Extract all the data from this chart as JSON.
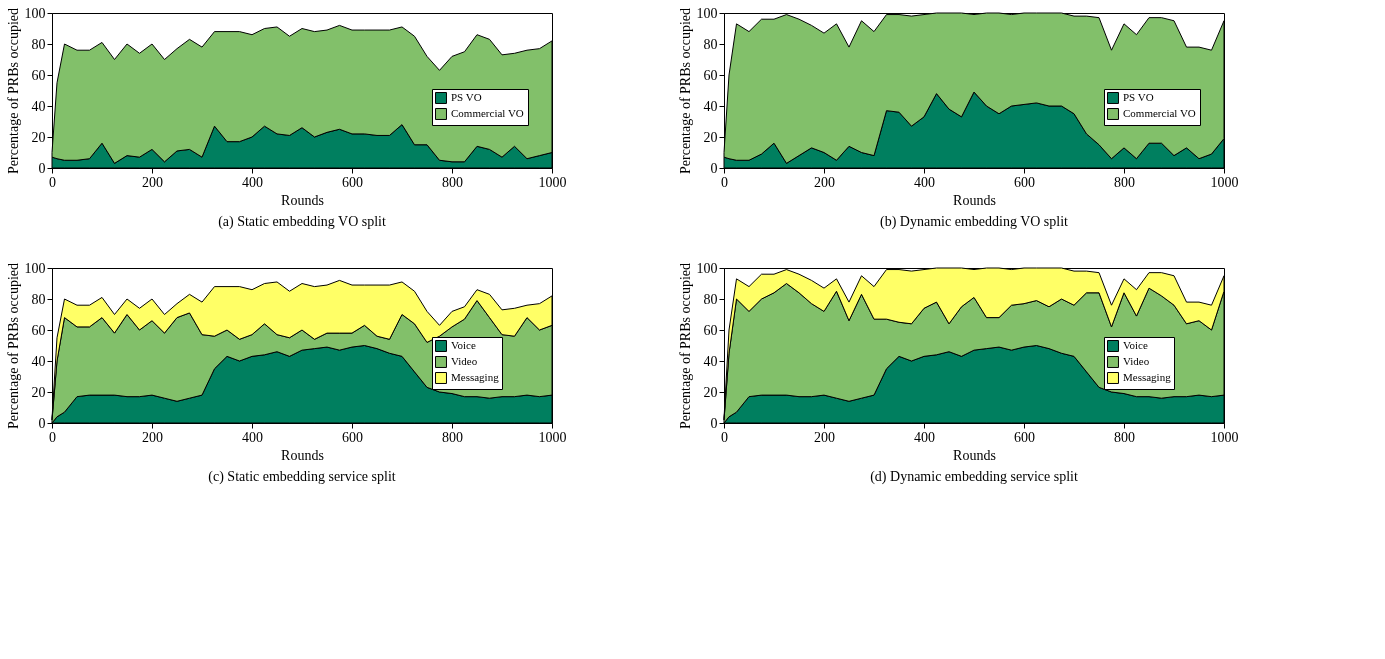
{
  "chart_data": [
    {
      "type": "area",
      "stacked": true,
      "title": "(a) Static embedding VO split",
      "xlabel": "Rounds",
      "ylabel": "Percentage of PRBs occupied",
      "legend": "right",
      "grid": false,
      "x": [
        0,
        10,
        25,
        50,
        75,
        100,
        125,
        150,
        175,
        200,
        225,
        250,
        275,
        300,
        325,
        350,
        375,
        400,
        425,
        450,
        475,
        500,
        525,
        550,
        575,
        600,
        625,
        650,
        675,
        700,
        725,
        750,
        775,
        800,
        825,
        850,
        875,
        900,
        925,
        950,
        975,
        1000
      ],
      "series": [
        {
          "name": "PS VO",
          "color": "#007f5f",
          "values": [
            7,
            6,
            5,
            5,
            6,
            16,
            3,
            8,
            7,
            12,
            4,
            11,
            12,
            7,
            27,
            17,
            17,
            20,
            27,
            22,
            21,
            26,
            20,
            23,
            25,
            22,
            22,
            21,
            21,
            28,
            15,
            15,
            5,
            4,
            4,
            14,
            12,
            7,
            14,
            6,
            8,
            10
          ]
        },
        {
          "name": "Commercial VO",
          "color": "#82c06a",
          "values": [
            3,
            49,
            75,
            71,
            70,
            65,
            67,
            72,
            67,
            68,
            66,
            66,
            71,
            71,
            61,
            71,
            71,
            66,
            63,
            69,
            64,
            64,
            68,
            66,
            67,
            67,
            67,
            68,
            68,
            63,
            70,
            57,
            58,
            68,
            71,
            72,
            71,
            66,
            60,
            70,
            69,
            72
          ]
        }
      ],
      "xlim": [
        0,
        1000
      ],
      "ylim": [
        0,
        100
      ],
      "xticks": [
        0,
        200,
        400,
        600,
        800,
        1000
      ],
      "yticks": [
        0,
        20,
        40,
        60,
        80,
        100
      ]
    },
    {
      "type": "area",
      "stacked": true,
      "title": "(b) Dynamic embedding VO split",
      "xlabel": "Rounds",
      "ylabel": "Percentage of PRBs occupied",
      "legend": "right",
      "grid": false,
      "x": [
        0,
        10,
        25,
        50,
        75,
        100,
        125,
        150,
        175,
        200,
        225,
        250,
        275,
        300,
        325,
        350,
        375,
        400,
        425,
        450,
        475,
        500,
        525,
        550,
        575,
        600,
        625,
        650,
        675,
        700,
        725,
        750,
        775,
        800,
        825,
        850,
        875,
        900,
        925,
        950,
        975,
        1000
      ],
      "series": [
        {
          "name": "PS VO",
          "color": "#007f5f",
          "values": [
            7,
            6,
            5,
            5,
            9,
            16,
            3,
            8,
            13,
            10,
            5,
            14,
            10,
            8,
            37,
            36,
            27,
            33,
            48,
            38,
            33,
            49,
            40,
            35,
            40,
            41,
            42,
            40,
            40,
            35,
            22,
            15,
            6,
            13,
            6,
            16,
            16,
            8,
            13,
            6,
            9,
            19
          ]
        },
        {
          "name": "Commercial VO",
          "color": "#82c06a",
          "values": [
            3,
            54,
            88,
            83,
            87,
            80,
            96,
            88,
            79,
            77,
            88,
            64,
            85,
            80,
            62,
            63,
            71,
            66,
            52,
            62,
            67,
            50,
            60,
            65,
            59,
            59,
            58,
            60,
            60,
            63,
            76,
            82,
            70,
            80,
            80,
            81,
            81,
            87,
            65,
            72,
            67,
            76
          ]
        }
      ],
      "xlim": [
        0,
        1000
      ],
      "ylim": [
        0,
        100
      ],
      "xticks": [
        0,
        200,
        400,
        600,
        800,
        1000
      ],
      "yticks": [
        0,
        20,
        40,
        60,
        80,
        100
      ]
    },
    {
      "type": "area",
      "stacked": true,
      "title": "(c) Static embedding service split",
      "xlabel": "Rounds",
      "ylabel": "Percentage of PRBs occupied",
      "legend": "right",
      "grid": false,
      "x": [
        0,
        10,
        25,
        50,
        75,
        100,
        125,
        150,
        175,
        200,
        225,
        250,
        275,
        300,
        325,
        350,
        375,
        400,
        425,
        450,
        475,
        500,
        525,
        550,
        575,
        600,
        625,
        650,
        675,
        700,
        725,
        750,
        775,
        800,
        825,
        850,
        875,
        900,
        925,
        950,
        975,
        1000
      ],
      "series": [
        {
          "name": "Voice",
          "color": "#007f5f",
          "values": [
            0,
            4,
            7,
            17,
            18,
            18,
            18,
            17,
            17,
            18,
            16,
            14,
            16,
            18,
            35,
            43,
            40,
            43,
            44,
            46,
            43,
            47,
            48,
            49,
            47,
            49,
            50,
            48,
            45,
            43,
            33,
            23,
            20,
            19,
            17,
            17,
            16,
            17,
            17,
            18,
            17,
            18
          ]
        },
        {
          "name": "Video",
          "color": "#82c06a",
          "values": [
            2,
            36,
            61,
            45,
            44,
            50,
            40,
            53,
            43,
            48,
            42,
            54,
            55,
            39,
            21,
            17,
            14,
            14,
            20,
            11,
            12,
            13,
            6,
            9,
            11,
            9,
            13,
            8,
            9,
            27,
            31,
            29,
            36,
            43,
            50,
            62,
            52,
            40,
            39,
            50,
            43,
            45
          ]
        },
        {
          "name": "Messaging",
          "color": "#ffff66",
          "values": [
            1,
            15,
            12,
            14,
            14,
            13,
            12,
            10,
            14,
            14,
            12,
            9,
            12,
            21,
            32,
            28,
            34,
            29,
            26,
            34,
            30,
            30,
            34,
            31,
            34,
            31,
            26,
            33,
            35,
            21,
            21,
            20,
            7,
            10,
            8,
            7,
            15,
            16,
            18,
            8,
            17,
            19
          ]
        }
      ],
      "xlim": [
        0,
        1000
      ],
      "ylim": [
        0,
        100
      ],
      "xticks": [
        0,
        200,
        400,
        600,
        800,
        1000
      ],
      "yticks": [
        0,
        20,
        40,
        60,
        80,
        100
      ]
    },
    {
      "type": "area",
      "stacked": true,
      "title": "(d) Dynamic embedding service split",
      "xlabel": "Rounds",
      "ylabel": "Percentage of PRBs occupied",
      "legend": "right",
      "grid": false,
      "x": [
        0,
        10,
        25,
        50,
        75,
        100,
        125,
        150,
        175,
        200,
        225,
        250,
        275,
        300,
        325,
        350,
        375,
        400,
        425,
        450,
        475,
        500,
        525,
        550,
        575,
        600,
        625,
        650,
        675,
        700,
        725,
        750,
        775,
        800,
        825,
        850,
        875,
        900,
        925,
        950,
        975,
        1000
      ],
      "series": [
        {
          "name": "Voice",
          "color": "#007f5f",
          "values": [
            0,
            4,
            7,
            17,
            18,
            18,
            18,
            17,
            17,
            18,
            16,
            14,
            16,
            18,
            35,
            43,
            40,
            43,
            44,
            46,
            43,
            47,
            48,
            49,
            47,
            49,
            50,
            48,
            45,
            43,
            33,
            23,
            20,
            19,
            17,
            17,
            16,
            17,
            17,
            18,
            17,
            18
          ]
        },
        {
          "name": "Video",
          "color": "#82c06a",
          "values": [
            2,
            41,
            73,
            55,
            62,
            66,
            72,
            67,
            60,
            54,
            69,
            52,
            67,
            49,
            32,
            22,
            24,
            31,
            34,
            18,
            32,
            34,
            20,
            19,
            29,
            28,
            29,
            27,
            35,
            33,
            51,
            61,
            42,
            65,
            52,
            70,
            66,
            59,
            47,
            48,
            43,
            67
          ]
        },
        {
          "name": "Messaging",
          "color": "#ffff66",
          "values": [
            1,
            15,
            13,
            16,
            16,
            12,
            9,
            12,
            15,
            15,
            8,
            12,
            12,
            21,
            32,
            34,
            34,
            25,
            22,
            36,
            25,
            18,
            32,
            32,
            23,
            23,
            21,
            25,
            20,
            22,
            14,
            13,
            14,
            9,
            17,
            10,
            15,
            19,
            14,
            12,
            16,
            10
          ]
        }
      ],
      "xlim": [
        0,
        1000
      ],
      "ylim": [
        0,
        100
      ],
      "xticks": [
        0,
        200,
        400,
        600,
        800,
        1000
      ],
      "yticks": [
        0,
        20,
        40,
        60,
        80,
        100
      ]
    }
  ]
}
